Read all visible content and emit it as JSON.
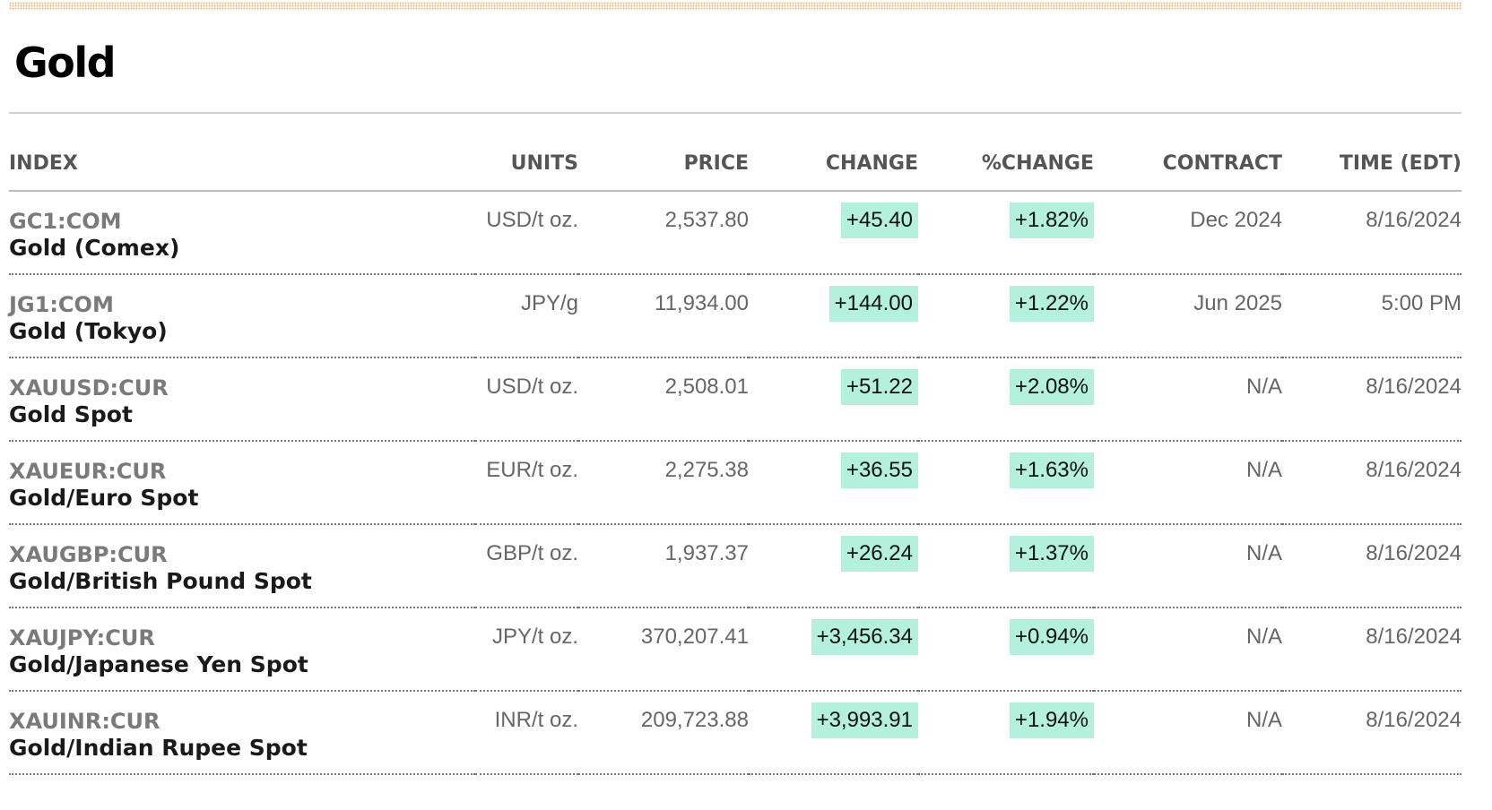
{
  "page": {
    "title": "Gold"
  },
  "table": {
    "headers": {
      "index": "INDEX",
      "units": "UNITS",
      "price": "PRICE",
      "change": "CHANGE",
      "pct_change": "%CHANGE",
      "contract": "CONTRACT",
      "time": "TIME (EDT)"
    },
    "rows": [
      {
        "ticker": "GC1:COM",
        "name": "Gold (Comex)",
        "units": "USD/t oz.",
        "price": "2,537.80",
        "change": "+45.40",
        "pct_change": "+1.82%",
        "contract": "Dec 2024",
        "time": "8/16/2024"
      },
      {
        "ticker": "JG1:COM",
        "name": "Gold (Tokyo)",
        "units": "JPY/g",
        "price": "11,934.00",
        "change": "+144.00",
        "pct_change": "+1.22%",
        "contract": "Jun 2025",
        "time": "5:00 PM"
      },
      {
        "ticker": "XAUUSD:CUR",
        "name": "Gold Spot",
        "units": "USD/t oz.",
        "price": "2,508.01",
        "change": "+51.22",
        "pct_change": "+2.08%",
        "contract": "N/A",
        "time": "8/16/2024"
      },
      {
        "ticker": "XAUEUR:CUR",
        "name": "Gold/Euro Spot",
        "units": "EUR/t oz.",
        "price": "2,275.38",
        "change": "+36.55",
        "pct_change": "+1.63%",
        "contract": "N/A",
        "time": "8/16/2024"
      },
      {
        "ticker": "XAUGBP:CUR",
        "name": "Gold/British Pound Spot",
        "units": "GBP/t oz.",
        "price": "1,937.37",
        "change": "+26.24",
        "pct_change": "+1.37%",
        "contract": "N/A",
        "time": "8/16/2024"
      },
      {
        "ticker": "XAUJPY:CUR",
        "name": "Gold/Japanese Yen Spot",
        "units": "JPY/t oz.",
        "price": "370,207.41",
        "change": "+3,456.34",
        "pct_change": "+0.94%",
        "contract": "N/A",
        "time": "8/16/2024"
      },
      {
        "ticker": "XAUINR:CUR",
        "name": "Gold/Indian Rupee Spot",
        "units": "INR/t oz.",
        "price": "209,723.88",
        "change": "+3,993.91",
        "pct_change": "+1.94%",
        "contract": "N/A",
        "time": "8/16/2024"
      }
    ]
  },
  "colors": {
    "positive_highlight": "#b3f1dd",
    "top_rule": "#f2b37a"
  }
}
